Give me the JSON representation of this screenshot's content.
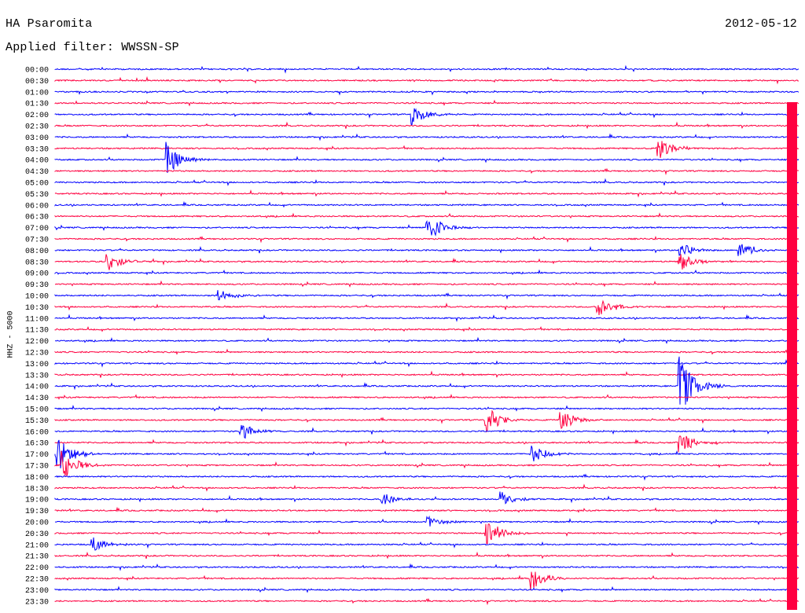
{
  "header": {
    "station": "HA Psaromita",
    "date": "2012-05-12",
    "filter": "Applied filter: WWSSN-SP",
    "ylabel": "HHZ - 5000"
  },
  "chart_data": {
    "type": "line",
    "title": "HA Psaromita",
    "subtitle": "Applied filter: WWSSN-SP",
    "ylabel": "HHZ - 5000",
    "rows": [
      "00:00",
      "00:30",
      "01:00",
      "01:30",
      "02:00",
      "02:30",
      "03:00",
      "03:30",
      "04:00",
      "04:30",
      "05:00",
      "05:30",
      "06:00",
      "06:30",
      "07:00",
      "07:30",
      "08:00",
      "08:30",
      "09:00",
      "09:30",
      "10:00",
      "10:30",
      "11:00",
      "11:30",
      "12:00",
      "12:30",
      "13:00",
      "13:30",
      "14:00",
      "14:30",
      "15:00",
      "15:30",
      "16:00",
      "16:30",
      "17:00",
      "17:30",
      "18:00",
      "18:30",
      "19:00",
      "19:30",
      "20:00",
      "20:30",
      "21:00",
      "21:30",
      "22:00",
      "22:30",
      "23:00",
      "23:30"
    ],
    "colors": [
      "#0000ff",
      "#ff0040"
    ],
    "grid": false,
    "events": [
      {
        "row": 4,
        "t": 0.48,
        "amp": 14
      },
      {
        "row": 8,
        "t": 0.15,
        "amp": 22
      },
      {
        "row": 7,
        "t": 0.81,
        "amp": 16
      },
      {
        "row": 14,
        "t": 0.5,
        "amp": 22
      },
      {
        "row": 16,
        "t": 0.84,
        "amp": 10
      },
      {
        "row": 16,
        "t": 0.92,
        "amp": 10
      },
      {
        "row": 17,
        "t": 0.07,
        "amp": 14
      },
      {
        "row": 17,
        "t": 0.84,
        "amp": 12
      },
      {
        "row": 20,
        "t": 0.22,
        "amp": 8
      },
      {
        "row": 21,
        "t": 0.73,
        "amp": 14
      },
      {
        "row": 28,
        "t": 0.84,
        "amp": 40
      },
      {
        "row": 31,
        "t": 0.58,
        "amp": 18
      },
      {
        "row": 31,
        "t": 0.68,
        "amp": 14
      },
      {
        "row": 32,
        "t": 0.25,
        "amp": 12
      },
      {
        "row": 33,
        "t": 0.84,
        "amp": 14
      },
      {
        "row": 34,
        "t": 0.0,
        "amp": 28
      },
      {
        "row": 34,
        "t": 0.64,
        "amp": 14
      },
      {
        "row": 35,
        "t": 0.01,
        "amp": 20
      },
      {
        "row": 38,
        "t": 0.44,
        "amp": 10
      },
      {
        "row": 38,
        "t": 0.6,
        "amp": 10
      },
      {
        "row": 40,
        "t": 0.5,
        "amp": 8
      },
      {
        "row": 41,
        "t": 0.58,
        "amp": 22
      },
      {
        "row": 42,
        "t": 0.05,
        "amp": 10
      },
      {
        "row": 45,
        "t": 0.64,
        "amp": 16
      }
    ]
  }
}
